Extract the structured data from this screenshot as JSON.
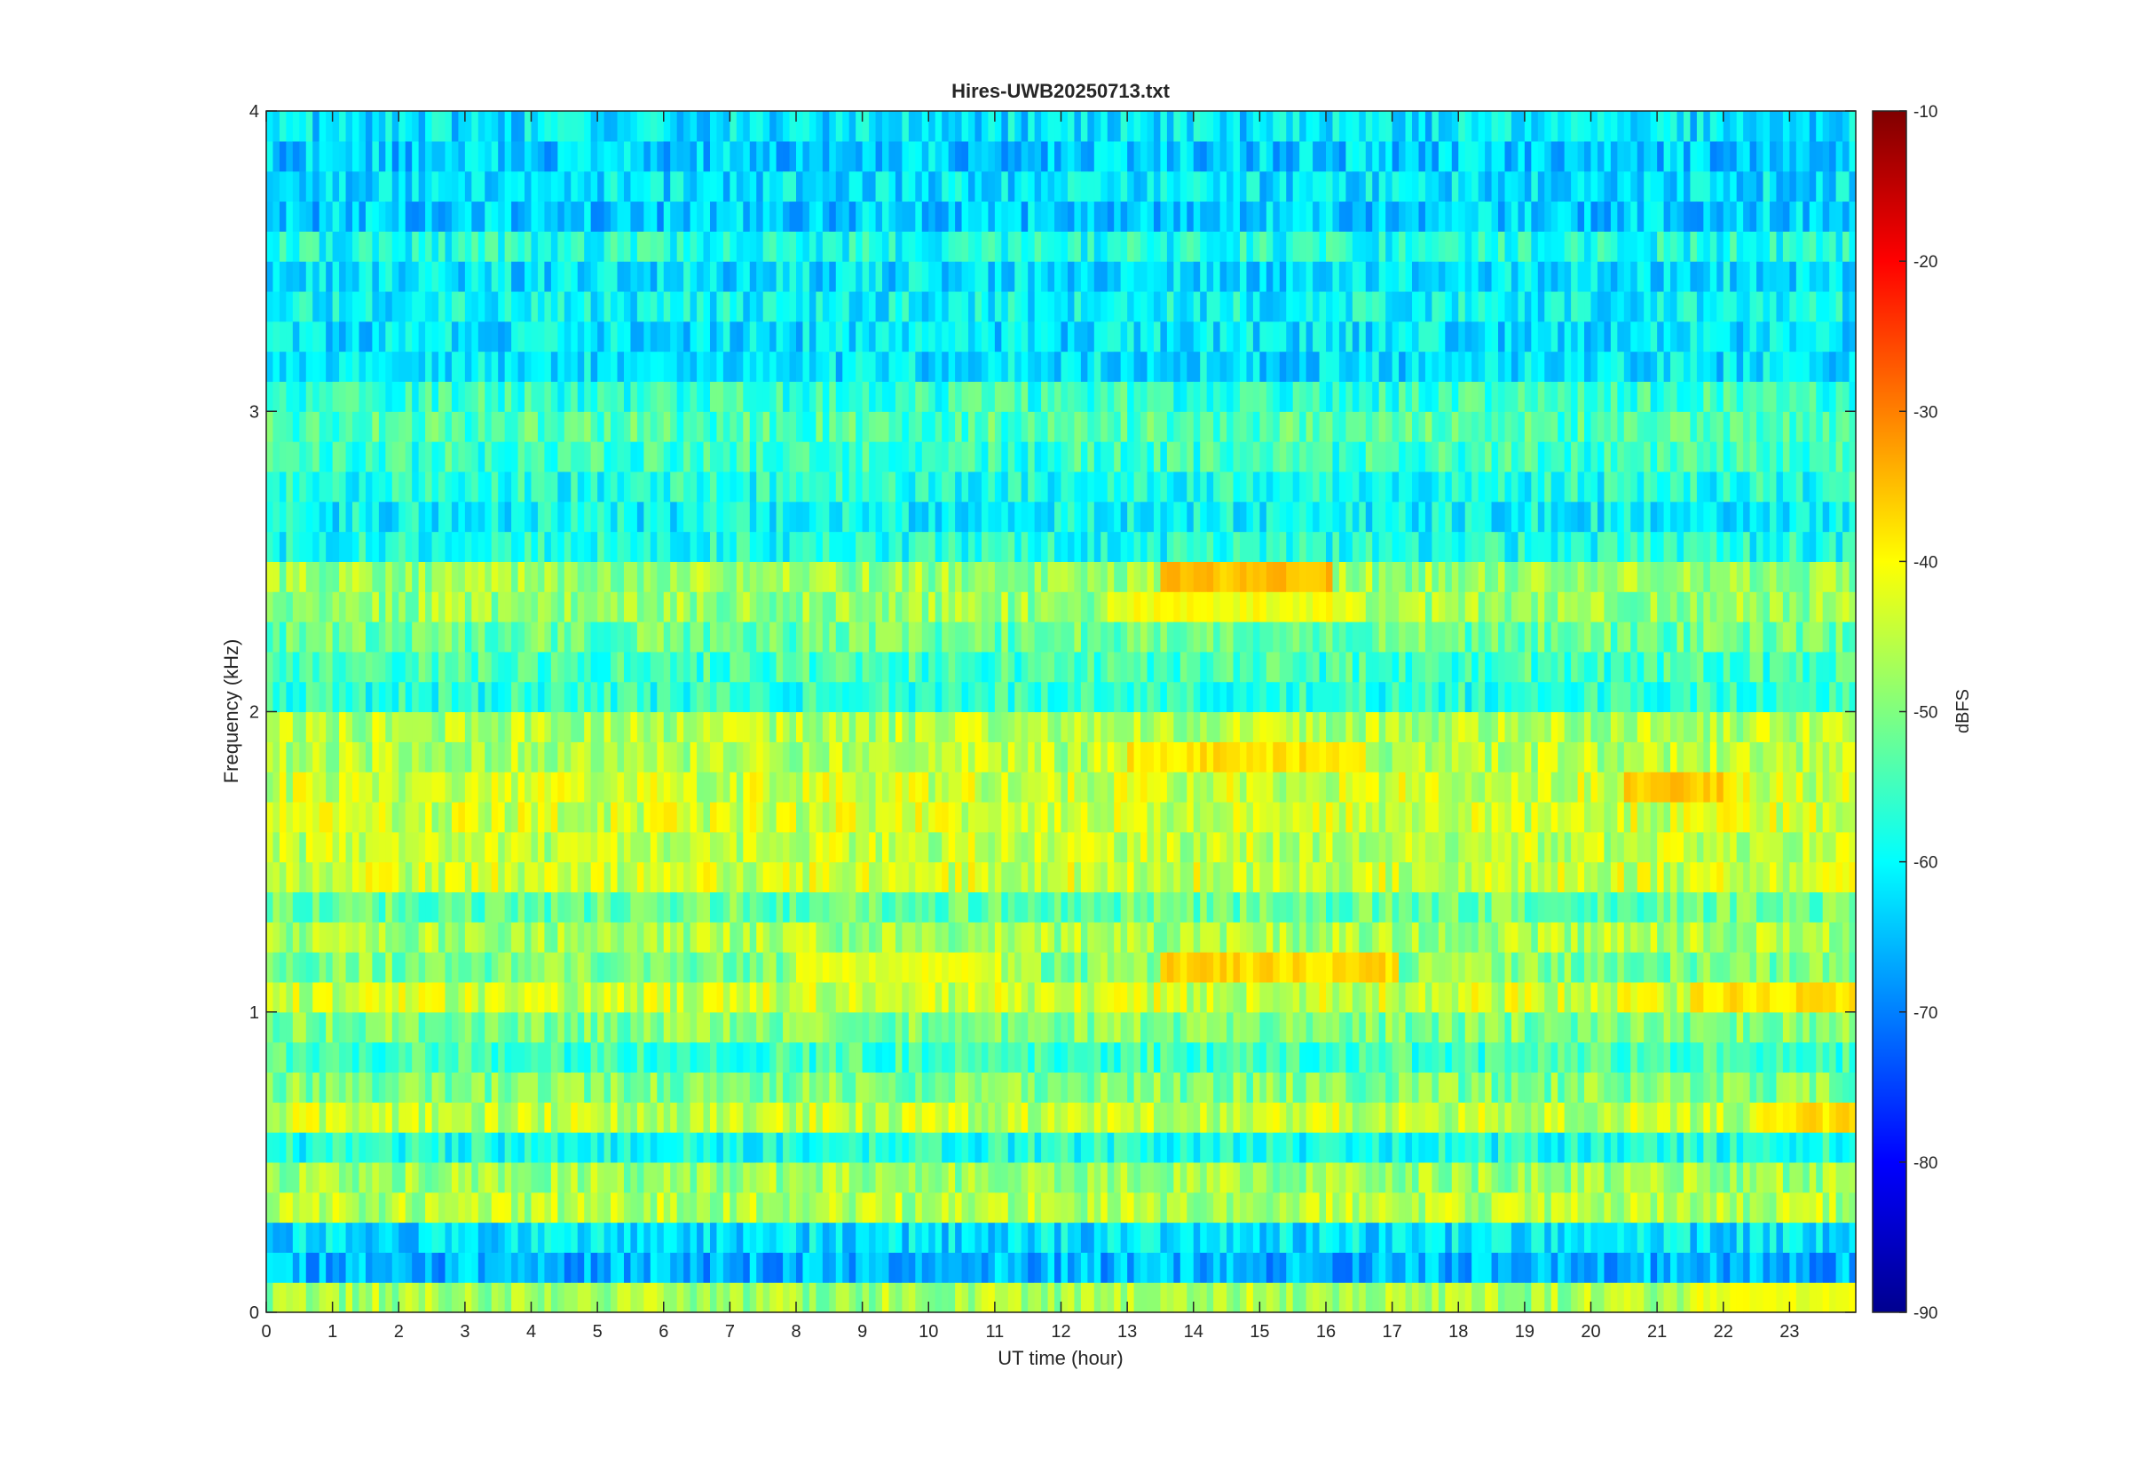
{
  "chart_data": {
    "type": "heatmap",
    "title": "Hires-UWB20250713.txt",
    "xlabel": "UT time (hour)",
    "ylabel": "Frequency (kHz)",
    "xlim": [
      0,
      24
    ],
    "ylim": [
      0,
      4
    ],
    "x_ticks": [
      "0",
      "1",
      "2",
      "3",
      "4",
      "5",
      "6",
      "7",
      "8",
      "9",
      "10",
      "11",
      "12",
      "13",
      "14",
      "15",
      "16",
      "17",
      "18",
      "19",
      "20",
      "21",
      "22",
      "23"
    ],
    "y_ticks": [
      "0",
      "1",
      "2",
      "3",
      "4"
    ],
    "colorbar": {
      "label": "dBFS",
      "range": [
        -90,
        -10
      ],
      "ticks": [
        "-10",
        "-20",
        "-30",
        "-40",
        "-50",
        "-60",
        "-70",
        "-80",
        "-90"
      ],
      "colormap": "jet"
    },
    "frequency_bands_khz": [
      0.05,
      0.15,
      0.25,
      0.35,
      0.45,
      0.55,
      0.65,
      0.75,
      0.85,
      0.95,
      1.05,
      1.15,
      1.25,
      1.35,
      1.45,
      1.55,
      1.65,
      1.75,
      1.85,
      1.95,
      2.05,
      2.15,
      2.25,
      2.35,
      2.45,
      2.55,
      2.65,
      2.75,
      2.85,
      2.95,
      3.05,
      3.15,
      3.25,
      3.35,
      3.45,
      3.55,
      3.65,
      3.75,
      3.85,
      3.95
    ],
    "band_mean_dbfs": [
      -47,
      -66,
      -62,
      -46,
      -48,
      -58,
      -45,
      -50,
      -55,
      -50,
      -44,
      -50,
      -47,
      -52,
      -44,
      -45,
      -44,
      -44,
      -46,
      -46,
      -57,
      -55,
      -52,
      -48,
      -48,
      -58,
      -60,
      -58,
      -56,
      -54,
      -56,
      -62,
      -62,
      -60,
      -62,
      -58,
      -64,
      -62,
      -64,
      -62
    ],
    "bursts": [
      {
        "f_khz": 2.45,
        "t_start_h": 13.5,
        "t_end_h": 16.0,
        "level_dbfs": -35
      },
      {
        "f_khz": 2.35,
        "t_start_h": 12.7,
        "t_end_h": 16.5,
        "level_dbfs": -41
      },
      {
        "f_khz": 1.85,
        "t_start_h": 13.0,
        "t_end_h": 16.5,
        "level_dbfs": -38
      },
      {
        "f_khz": 1.75,
        "t_start_h": 20.5,
        "t_end_h": 22.0,
        "level_dbfs": -36
      },
      {
        "f_khz": 1.15,
        "t_start_h": 13.5,
        "t_end_h": 17.0,
        "level_dbfs": -37
      },
      {
        "f_khz": 1.15,
        "t_start_h": 8.0,
        "t_end_h": 11.0,
        "level_dbfs": -42
      },
      {
        "f_khz": 1.05,
        "t_start_h": 21.5,
        "t_end_h": 24.0,
        "level_dbfs": -38
      },
      {
        "f_khz": 0.65,
        "t_start_h": 22.5,
        "t_end_h": 24.0,
        "level_dbfs": -38
      },
      {
        "f_khz": 0.05,
        "t_start_h": 21.5,
        "t_end_h": 24.0,
        "level_dbfs": -42
      }
    ],
    "grid": false,
    "legend": "none",
    "colors": {
      "axis": "#262626",
      "background": "#ffffff"
    }
  }
}
